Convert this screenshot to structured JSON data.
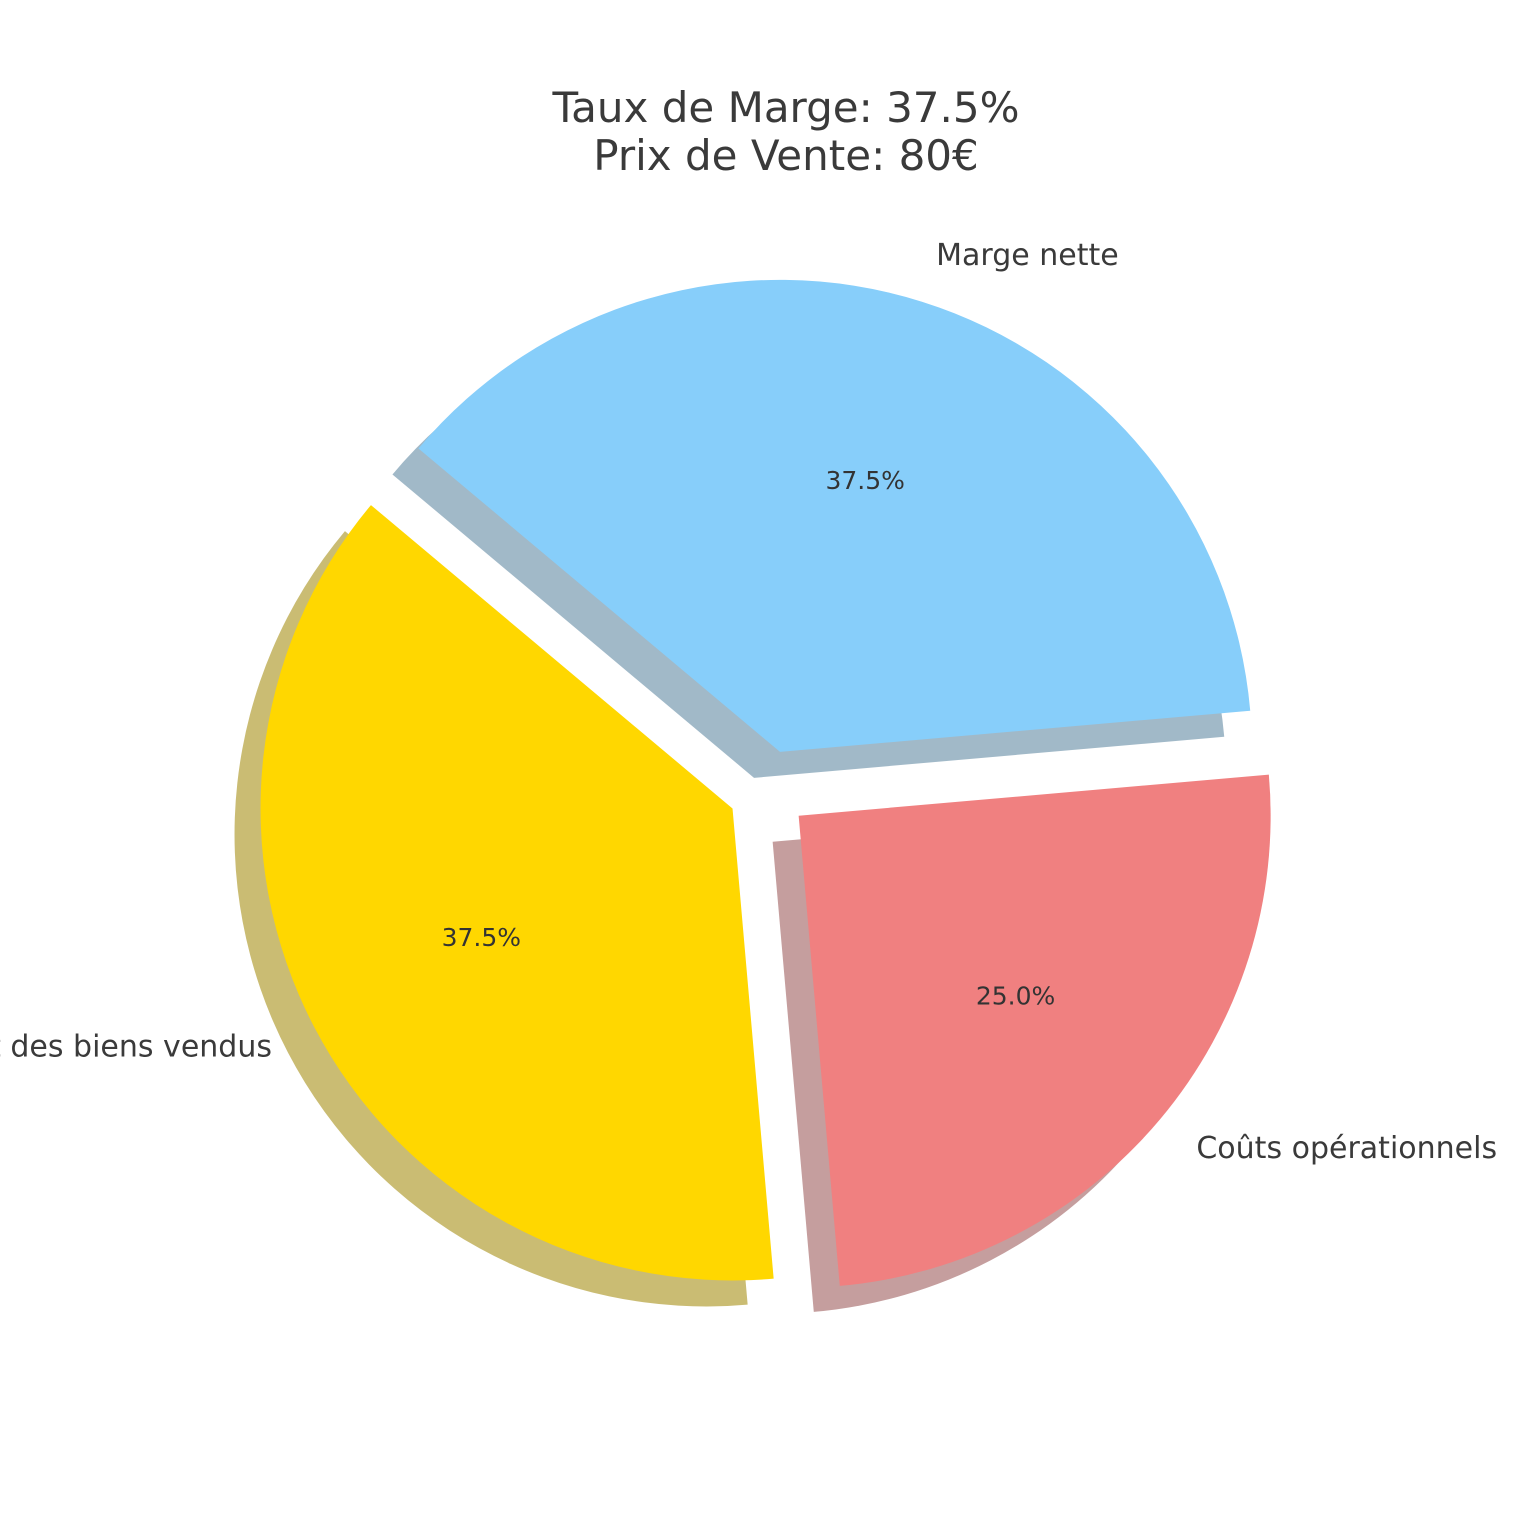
{
  "chart_data": {
    "type": "pie",
    "title_lines": [
      "Taux de Marge: 37.5%",
      "Prix de Vente: 80€"
    ],
    "slices": [
      {
        "label": "Coût des biens vendus",
        "value": 37.5,
        "pct_label": "37.5%",
        "color": "#FFD700",
        "exploded": true
      },
      {
        "label": "Coûts opérationnels",
        "value": 25.0,
        "pct_label": "25.0%",
        "color": "#F08080",
        "exploded": true
      },
      {
        "label": "Marge nette",
        "value": 37.5,
        "pct_label": "37.5%",
        "color": "#87CEFA",
        "exploded": true
      }
    ],
    "shadow": true
  }
}
